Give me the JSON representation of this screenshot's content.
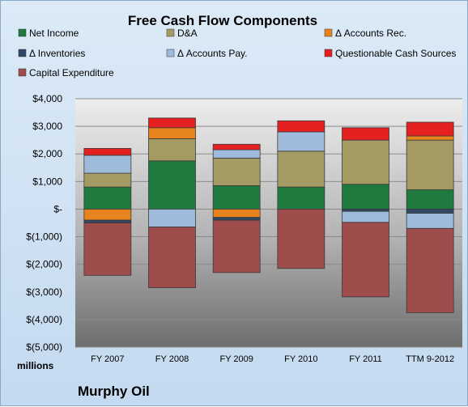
{
  "chart_data": {
    "type": "bar",
    "stacked": true,
    "title": "Free Cash Flow Components",
    "unit_label": "millions",
    "company": "Murphy Oil",
    "categories": [
      "FY 2007",
      "FY 2008",
      "FY 2009",
      "FY 2010",
      "FY 2011",
      "TTM 9-2012"
    ],
    "ylim": [
      -5000,
      4000
    ],
    "yticks": [
      4000,
      3000,
      2000,
      1000,
      0,
      -1000,
      -2000,
      -3000,
      -4000,
      -5000
    ],
    "ytick_labels": [
      "$4,000",
      "$3,000",
      "$2,000",
      "$1,000",
      "$-",
      "$(1,000)",
      "$(2,000)",
      "$(3,000)",
      "$(4,000)",
      "$(5,000)"
    ],
    "grid": true,
    "legend_position": "top",
    "series": [
      {
        "name": "Net Income",
        "color": "#1e7a3e",
        "values": [
          800,
          1750,
          850,
          800,
          900,
          700
        ]
      },
      {
        "name": "D&A",
        "color": "#a49a64",
        "values": [
          500,
          800,
          1000,
          1300,
          1600,
          1800
        ]
      },
      {
        "name": "Δ Accounts Rec.",
        "color": "#e8841e",
        "values": [
          -400,
          400,
          -300,
          0,
          0,
          150
        ]
      },
      {
        "name": "Δ Inventories",
        "color": "#2e4866",
        "values": [
          -100,
          0,
          -100,
          0,
          -80,
          -150
        ]
      },
      {
        "name": "Δ Accounts Pay.",
        "color": "#9fbbdb",
        "values": [
          650,
          -650,
          300,
          700,
          -400,
          -550
        ]
      },
      {
        "name": "Questionable Cash Sources",
        "color": "#e52020",
        "values": [
          250,
          350,
          200,
          400,
          450,
          500
        ]
      },
      {
        "name": "Capital Expenditure",
        "color": "#9e4c4c",
        "values": [
          -1900,
          -2200,
          -1900,
          -2150,
          -2700,
          -3050
        ]
      }
    ]
  }
}
